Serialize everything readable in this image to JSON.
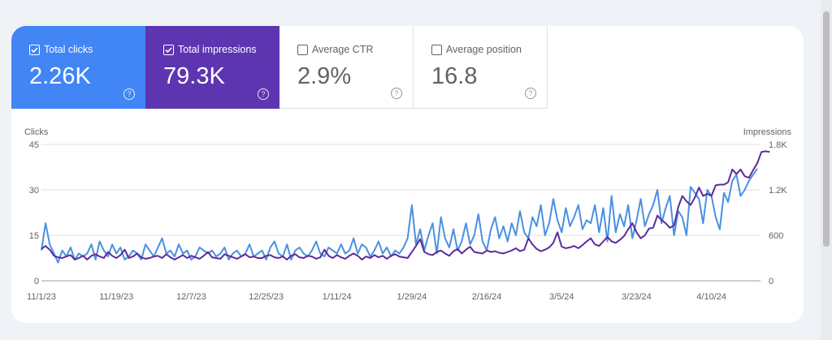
{
  "metrics": {
    "clicks": {
      "label": "Total clicks",
      "value": "2.26K",
      "checked": true
    },
    "impressions": {
      "label": "Total impressions",
      "value": "79.3K",
      "checked": true
    },
    "ctr": {
      "label": "Average CTR",
      "value": "2.9%",
      "checked": false
    },
    "position": {
      "label": "Average position",
      "value": "16.8",
      "checked": false
    },
    "help_glyph": "?"
  },
  "colors": {
    "clicks": "#4285f4",
    "impressions": "#5e35b1",
    "clicks_line": "#4a90e2",
    "impressions_line": "#5b2c9c",
    "grid": "#e0e0e0"
  },
  "chart_data": {
    "type": "line",
    "left_axis_label": "Clicks",
    "right_axis_label": "Impressions",
    "left_ticks": [
      "0",
      "15",
      "30",
      "45"
    ],
    "right_ticks": [
      "0",
      "600",
      "1.2K",
      "1.8K"
    ],
    "ylim_left": [
      0,
      45
    ],
    "ylim_right": [
      0,
      1800
    ],
    "x_labels": [
      "11/1/23",
      "11/19/23",
      "12/7/23",
      "12/25/23",
      "1/11/24",
      "1/29/24",
      "2/16/24",
      "3/5/24",
      "3/23/24",
      "4/10/24"
    ],
    "x_label_days": [
      0,
      18,
      36,
      54,
      71,
      89,
      107,
      125,
      143,
      161
    ],
    "grid": true,
    "series": [
      {
        "name": "Clicks",
        "axis": "left",
        "values": [
          10,
          19,
          12,
          9,
          6,
          10,
          8,
          11,
          7,
          9,
          8,
          9,
          12,
          7,
          13,
          10,
          8,
          12,
          9,
          11,
          7,
          8,
          10,
          9,
          7,
          12,
          10,
          8,
          11,
          14,
          9,
          10,
          8,
          12,
          9,
          10,
          7,
          8,
          11,
          10,
          9,
          10,
          8,
          9,
          11,
          7,
          9,
          10,
          8,
          9,
          12,
          8,
          9,
          10,
          7,
          11,
          13,
          9,
          8,
          12,
          7,
          10,
          11,
          9,
          8,
          10,
          13,
          9,
          8,
          11,
          10,
          9,
          12,
          9,
          10,
          14,
          9,
          12,
          11,
          8,
          10,
          13,
          9,
          11,
          8,
          10,
          9,
          11,
          14,
          25,
          12,
          17,
          10,
          15,
          19,
          9,
          21,
          14,
          11,
          17,
          10,
          13,
          19,
          12,
          15,
          22,
          13,
          10,
          17,
          21,
          14,
          18,
          13,
          19,
          15,
          23,
          16,
          14,
          21,
          18,
          25,
          15,
          19,
          27,
          20,
          16,
          24,
          18,
          21,
          25,
          17,
          20,
          19,
          25,
          16,
          24,
          13,
          28,
          16,
          22,
          18,
          25,
          14,
          20,
          27,
          18,
          22,
          25,
          30,
          19,
          24,
          28,
          15,
          23,
          21,
          15,
          31,
          29,
          27,
          19,
          30,
          28,
          21,
          17,
          29,
          26,
          33,
          35,
          28,
          30,
          33,
          35,
          37
        ]
      },
      {
        "name": "Impressions",
        "axis": "right",
        "values": [
          420,
          460,
          410,
          330,
          310,
          300,
          320,
          340,
          280,
          300,
          330,
          280,
          330,
          350,
          320,
          300,
          380,
          330,
          300,
          340,
          410,
          300,
          320,
          360,
          310,
          290,
          300,
          320,
          330,
          300,
          350,
          310,
          280,
          310,
          340,
          300,
          330,
          310,
          290,
          330,
          380,
          310,
          300,
          290,
          350,
          330,
          310,
          290,
          320,
          350,
          310,
          320,
          300,
          300,
          330,
          340,
          310,
          300,
          320,
          280,
          330,
          350,
          310,
          300,
          330,
          320,
          290,
          310,
          410,
          330,
          300,
          340,
          310,
          290,
          330,
          360,
          330,
          280,
          320,
          300,
          340,
          310,
          330,
          290,
          330,
          350,
          320,
          310,
          300,
          380,
          460,
          550,
          380,
          350,
          340,
          380,
          400,
          360,
          330,
          390,
          420,
          360,
          410,
          450,
          380,
          370,
          360,
          400,
          380,
          390,
          370,
          360,
          380,
          400,
          430,
          390,
          410,
          560,
          480,
          420,
          390,
          410,
          440,
          500,
          640,
          450,
          430,
          440,
          460,
          430,
          470,
          520,
          560,
          480,
          460,
          520,
          580,
          520,
          500,
          540,
          590,
          680,
          760,
          640,
          560,
          600,
          690,
          700,
          860,
          800,
          760,
          700,
          730,
          970,
          1120,
          1050,
          1000,
          1100,
          1230,
          1120,
          1150,
          1120,
          1260,
          1270,
          1270,
          1300,
          1470,
          1410,
          1470,
          1380,
          1360,
          1460,
          1550,
          1700,
          1710,
          1700
        ]
      }
    ]
  }
}
